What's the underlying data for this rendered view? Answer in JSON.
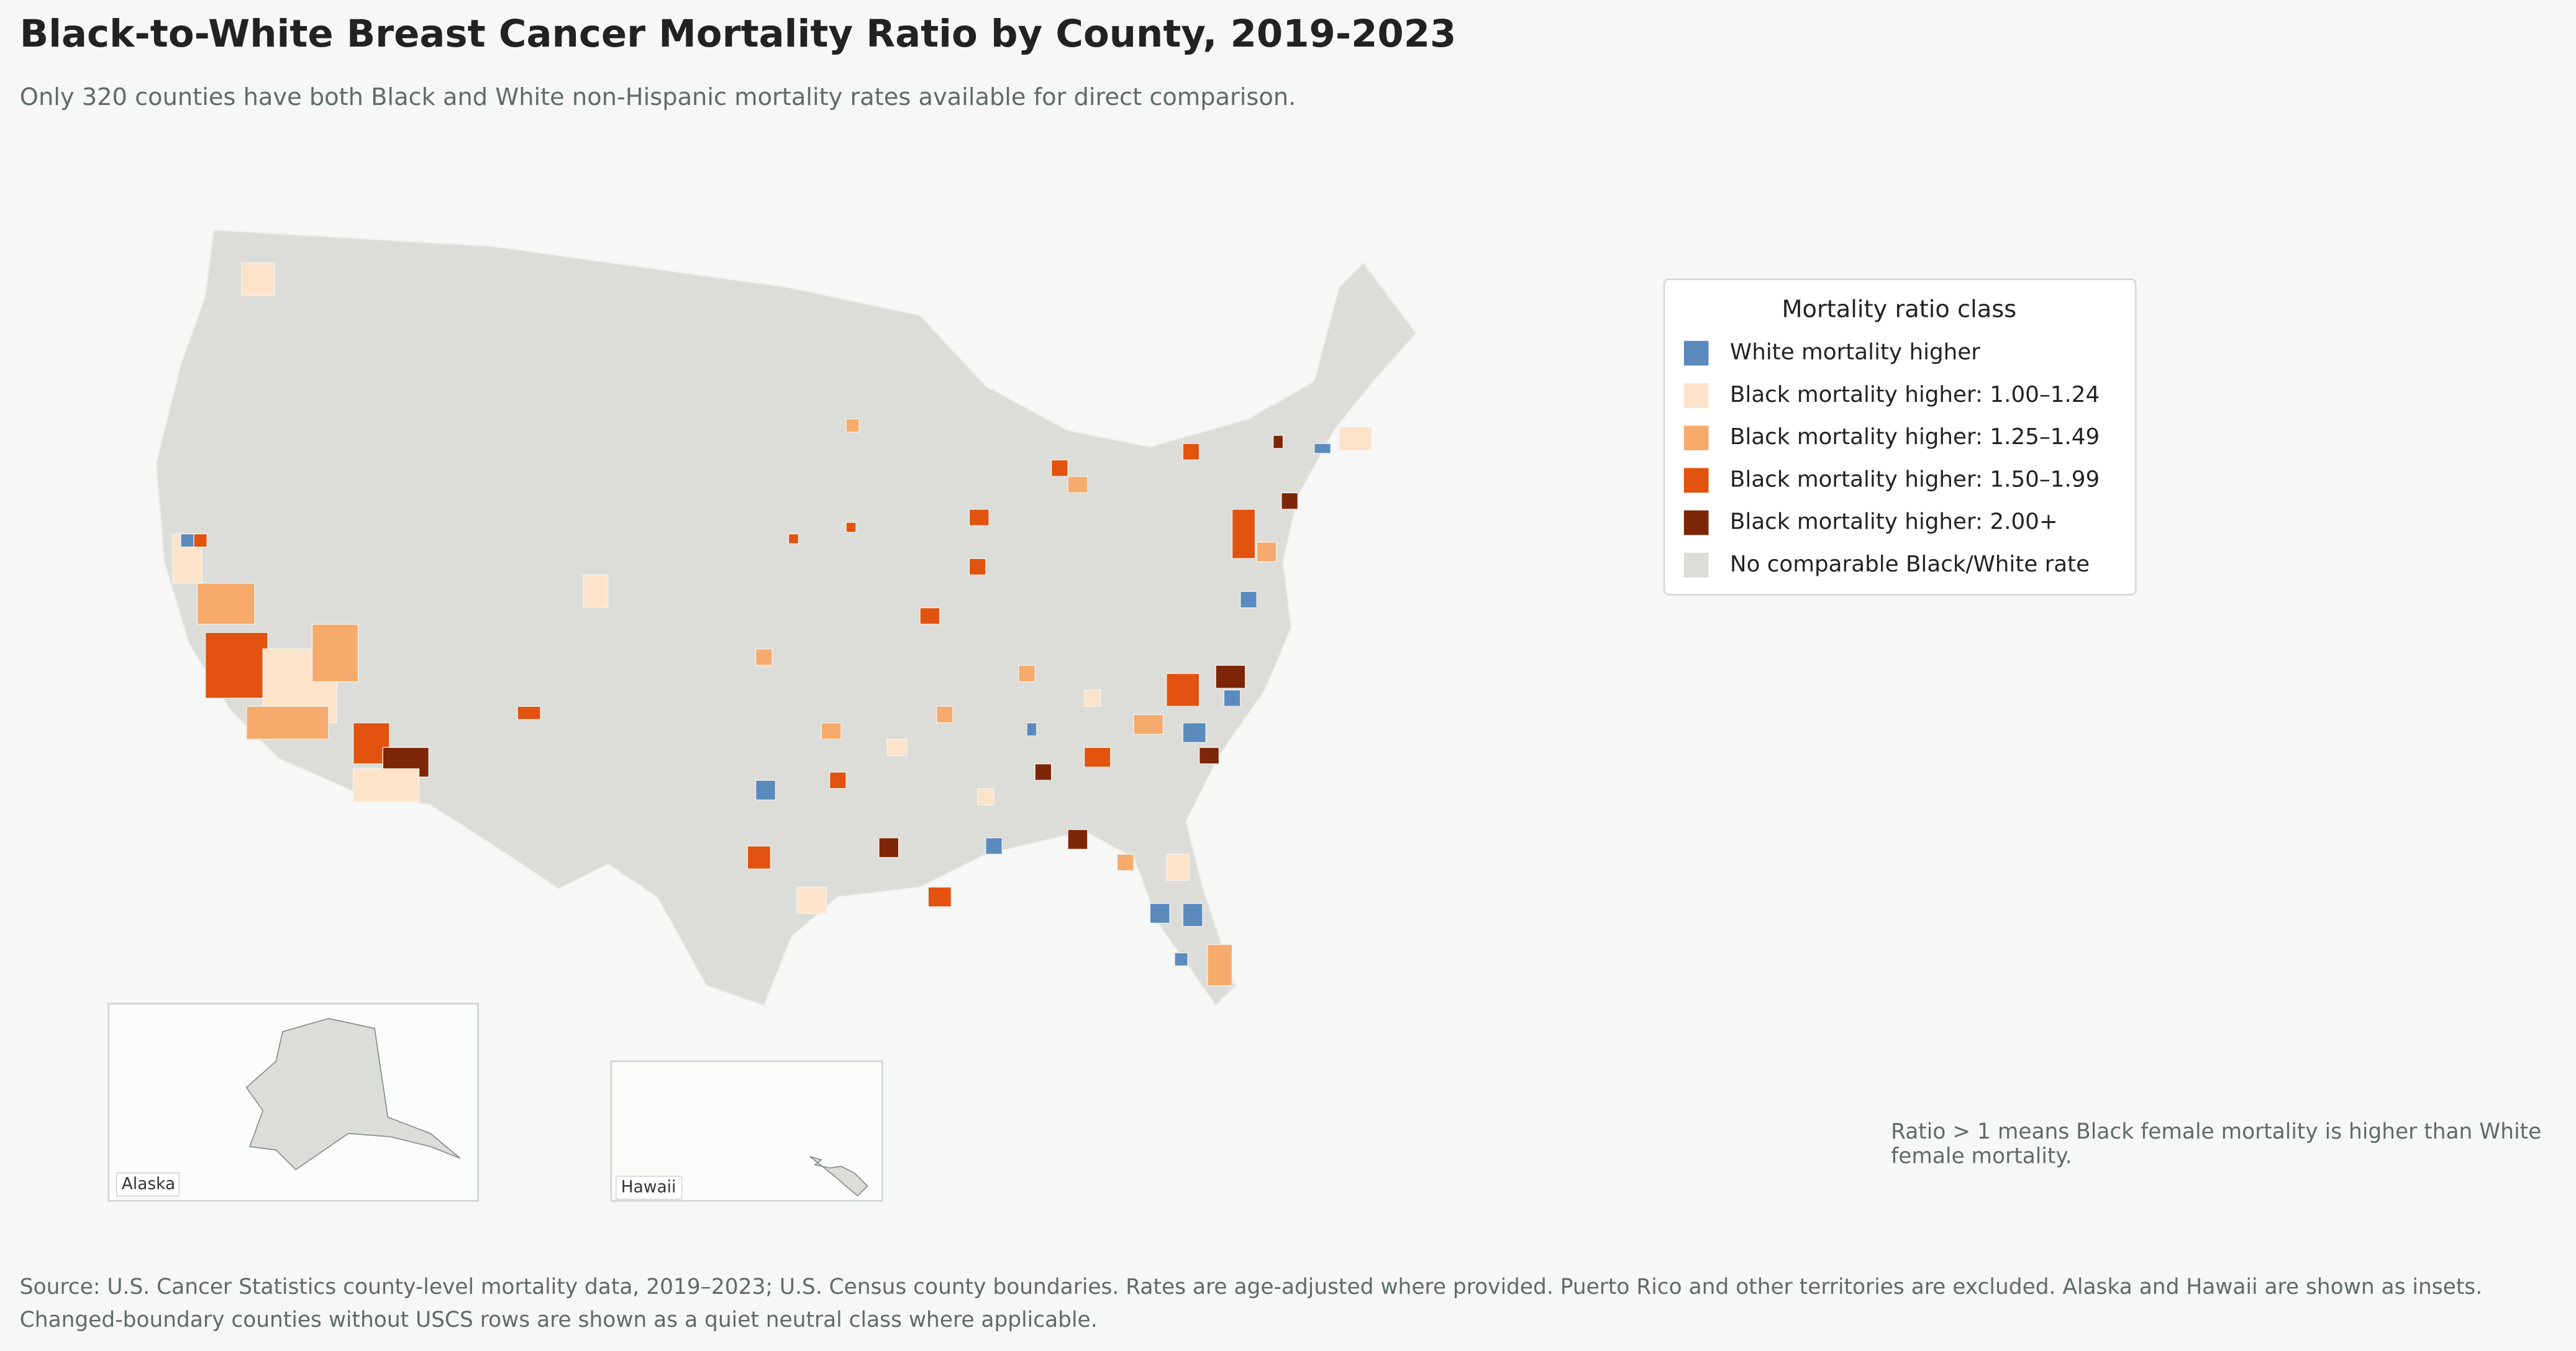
{
  "title": "Black-to-White Breast Cancer Mortality Ratio by County, 2019-2023",
  "subtitle": "Only 320 counties have both Black and White non-Hispanic mortality rates available for direct comparison.",
  "legend": {
    "title": "Mortality ratio class",
    "items": [
      {
        "label": "White mortality higher",
        "color": "#5b8bbd"
      },
      {
        "label": "Black mortality higher: 1.00–1.24",
        "color": "#fde3c9"
      },
      {
        "label": "Black mortality higher: 1.25–1.49",
        "color": "#f6ab6c"
      },
      {
        "label": "Black mortality higher: 1.50–1.99",
        "color": "#e1530e"
      },
      {
        "label": "Black mortality higher: 2.00+",
        "color": "#7d2607"
      },
      {
        "label": "No comparable Black/White rate",
        "color": "#dcdcd8"
      }
    ]
  },
  "insets": {
    "alaska": "Alaska",
    "hawaii": "Hawaii"
  },
  "note": "Ratio > 1 means Black female mortality is higher than White female mortality.",
  "source": [
    "Source: U.S. Cancer Statistics county-level mortality data, 2019–2023; U.S. Census county boundaries. Rates are age-adjusted where provided. Puerto Rico and other territories are excluded. Alaska and Hawaii are shown as insets.",
    "Changed-boundary counties without USCS rows are shown as a quiet neutral class where applicable."
  ]
}
